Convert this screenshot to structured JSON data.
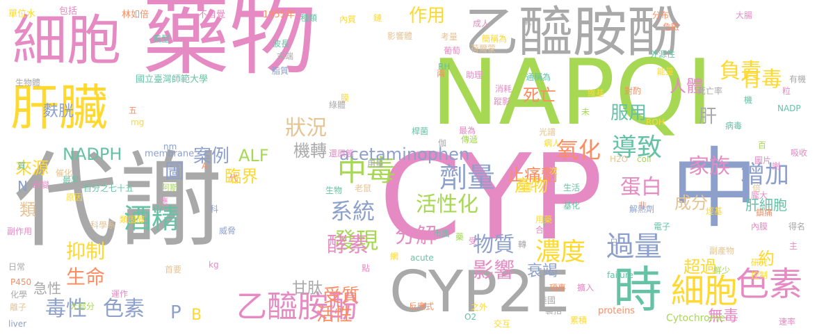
{
  "palette": {
    "gray": "#a9a9a9",
    "pink": "#e68ac3",
    "green": "#a6d854",
    "blue": "#8da0cb",
    "yellow": "#ffd92f",
    "teal": "#66c2a5",
    "orange": "#fc8d62",
    "tan": "#e5c494"
  },
  "words": [
    "代謝",
    "藥物",
    "CYP",
    "NAPQI",
    "中",
    "細胞",
    "乙醯胺酚",
    "肝臟",
    "CYP2E",
    "時",
    "細胞",
    "色素",
    "過量",
    "中毒",
    "酒精",
    "劑量",
    "系統",
    "乙醯胺酚",
    "增加",
    "導致",
    "氧化",
    "發現",
    "濃度",
    "影響",
    "狀況",
    "家族",
    "毒性",
    "色素",
    "有毒",
    "負責",
    "活性化",
    "分解",
    "酵素",
    "物質",
    "蛋白",
    "抑制",
    "生命",
    "案例",
    "NADPH",
    "來源",
    "死亡",
    "服用",
    "人體",
    "肝",
    "圖",
    "acetaminophen",
    "止痛劑",
    "機轉",
    "產物",
    "臨界",
    "ALF",
    "作用",
    "衰竭",
    "超過",
    "受質",
    "活性",
    "成分",
    "肝細胞",
    "約",
    "麩胱",
    "急性",
    "甘肽",
    "P",
    "B",
    "P",
    "無毒",
    "類",
    "N",
    "Cytochrome",
    "proteins",
    "membrane",
    "國立臺灣師範大學",
    "單位水",
    "包括",
    "林如倍",
    "不自覺",
    "1955年",
    "種類",
    "內質",
    "鏈",
    "成人",
    "氧",
    "分布",
    "危險",
    "大腸",
    "外源性",
    "荷爾蒙",
    "簡稱為",
    "考量",
    "影響體",
    "典型",
    "波長",
    "末端",
    "葡萄",
    "RH",
    "兩",
    "助理",
    "通稱為",
    "能量",
    "有機",
    "粒",
    "消耗",
    "對酌",
    "維基",
    "死亡率",
    "機",
    "NADP",
    "蹤影",
    "未",
    "ROH",
    "病毒",
    "光譜",
    "病人",
    "最為",
    "傳遞",
    "桿菌",
    "還原態",
    "用量",
    "H2O",
    "coli",
    "圖片",
    "吸收",
    "百",
    "謝",
    "次",
    "生物",
    "老鼠",
    "匹靈",
    "生活",
    "倍",
    "非",
    "基化",
    "龐大",
    "鎮痛",
    "解熱劑",
    "烴基",
    "內膜",
    "電子",
    "用藥",
    "合成",
    "市面",
    "受",
    "轉",
    "日",
    "主",
    "得名",
    "副產物",
    "研究",
    "鮮少",
    "控制",
    "failure",
    "acute",
    "點",
    "網",
    "項事",
    "美國",
    "擴入",
    "裏括",
    "累積",
    "之外",
    "O2",
    "交互",
    "反應式",
    "速率",
    "伽",
    "離子",
    "liver",
    "大部分",
    "運作",
    "首要",
    "化學",
    "P450",
    "日常",
    "副作用",
    "科學系",
    "應",
    "類固醇",
    "阿斯",
    "百分之七十五",
    "催化",
    "改變",
    "原因",
    "最早",
    "代",
    "nm",
    "威脅",
    "kg",
    "科",
    "膜",
    "綠體",
    "mg",
    "五",
    "生物體",
    "質",
    "脂質",
    "藥",
    "A",
    "g",
    "卵"
  ]
}
